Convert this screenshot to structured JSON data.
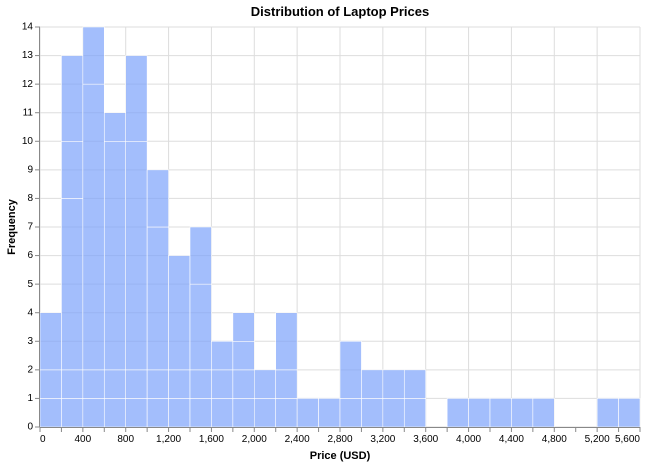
{
  "chart_data": {
    "type": "bar",
    "subtype": "stacked-histogram",
    "title": "Distribution of Laptop Prices",
    "xlabel": "Price (USD)",
    "ylabel": "Frequency",
    "xlim": [
      0,
      5600
    ],
    "ylim": [
      0,
      14
    ],
    "bin_width": 200,
    "x_ticks": [
      0,
      400,
      800,
      1200,
      1600,
      2000,
      2400,
      2800,
      3200,
      3600,
      4000,
      4400,
      4800,
      5200,
      5600
    ],
    "x_tick_labels": [
      "0",
      "400",
      "800",
      "1,200",
      "1,600",
      "2,000",
      "2,400",
      "2,800",
      "3,200",
      "3,600",
      "4,000",
      "4,400",
      "4,800",
      "5,200",
      "5,600"
    ],
    "y_ticks": [
      0,
      1,
      2,
      3,
      4,
      5,
      6,
      7,
      8,
      9,
      10,
      11,
      12,
      13,
      14
    ],
    "grid": true,
    "bar_color": "#7ca3fb",
    "bar_opacity": 0.7,
    "bins": [
      {
        "start": 0,
        "segments": [
          1,
          1,
          2
        ]
      },
      {
        "start": 200,
        "segments": [
          1,
          1,
          6,
          2,
          3
        ]
      },
      {
        "start": 400,
        "segments": [
          1,
          1,
          10,
          2
        ]
      },
      {
        "start": 600,
        "segments": [
          1,
          1,
          8,
          1
        ]
      },
      {
        "start": 800,
        "segments": [
          1,
          1,
          8,
          3
        ]
      },
      {
        "start": 1000,
        "segments": [
          1,
          1,
          5,
          2
        ]
      },
      {
        "start": 1200,
        "segments": [
          1,
          1,
          4
        ]
      },
      {
        "start": 1400,
        "segments": [
          1,
          1,
          3,
          2
        ]
      },
      {
        "start": 1600,
        "segments": [
          1,
          1,
          1
        ]
      },
      {
        "start": 1800,
        "segments": [
          1,
          1,
          1,
          1
        ]
      },
      {
        "start": 2000,
        "segments": [
          1,
          1
        ]
      },
      {
        "start": 2200,
        "segments": [
          1,
          1,
          2
        ]
      },
      {
        "start": 2400,
        "segments": [
          1
        ]
      },
      {
        "start": 2600,
        "segments": [
          1
        ]
      },
      {
        "start": 2800,
        "segments": [
          1,
          2
        ]
      },
      {
        "start": 3000,
        "segments": [
          1,
          1
        ]
      },
      {
        "start": 3200,
        "segments": [
          1,
          1
        ]
      },
      {
        "start": 3400,
        "segments": [
          1,
          1
        ]
      },
      {
        "start": 3800,
        "segments": [
          1
        ]
      },
      {
        "start": 4000,
        "segments": [
          1
        ]
      },
      {
        "start": 4200,
        "segments": [
          1
        ]
      },
      {
        "start": 4400,
        "segments": [
          1
        ]
      },
      {
        "start": 4600,
        "segments": [
          1
        ]
      },
      {
        "start": 5200,
        "segments": [
          1
        ]
      },
      {
        "start": 5400,
        "segments": [
          1
        ]
      }
    ]
  }
}
